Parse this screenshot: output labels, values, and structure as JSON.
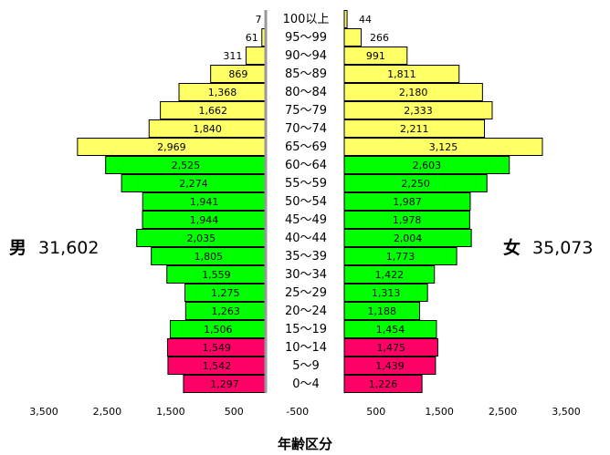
{
  "chart_data": {
    "type": "bar",
    "subtype": "population-pyramid",
    "categories": [
      "0～4",
      "5～9",
      "10～14",
      "15～19",
      "20～24",
      "25～29",
      "30～34",
      "35～39",
      "40～44",
      "45～49",
      "50～54",
      "55～59",
      "60～64",
      "65～69",
      "70～74",
      "75～79",
      "80～84",
      "85～89",
      "90～94",
      "95～99",
      "100以上"
    ],
    "series": [
      {
        "name": "男",
        "values": [
          1297,
          1542,
          1549,
          1506,
          1263,
          1275,
          1559,
          1805,
          2035,
          1944,
          1941,
          2274,
          2525,
          2969,
          1840,
          1662,
          1368,
          869,
          311,
          61,
          7
        ]
      },
      {
        "name": "女",
        "values": [
          1226,
          1439,
          1475,
          1454,
          1188,
          1313,
          1422,
          1773,
          2004,
          1978,
          1987,
          2250,
          2603,
          3125,
          2211,
          2333,
          2180,
          1811,
          991,
          266,
          44
        ]
      }
    ],
    "value_labels": {
      "male": [
        "1,297",
        "1,542",
        "1,549",
        "1,506",
        "1,263",
        "1,275",
        "1,559",
        "1,805",
        "2,035",
        "1,944",
        "1,941",
        "2,274",
        "2,525",
        "2,969",
        "1,840",
        "1,662",
        "1,368",
        "869",
        "311",
        "61",
        "7"
      ],
      "female": [
        "1,226",
        "1,439",
        "1,475",
        "1,454",
        "1,188",
        "1,313",
        "1,422",
        "1,773",
        "2,004",
        "1,978",
        "1,987",
        "2,250",
        "2,603",
        "3,125",
        "2,211",
        "2,333",
        "2,180",
        "1,811",
        "991",
        "266",
        "44"
      ]
    },
    "x_ticks_left": [
      "3,500",
      "2,500",
      "1,500",
      "500",
      "-500"
    ],
    "x_ticks_right": [
      "500",
      "1,500",
      "2,500",
      "3,500"
    ],
    "xlim": [
      0,
      3500
    ],
    "xlabel": "年齢区分",
    "totals": {
      "male_label": "男",
      "male_total": "31,602",
      "female_label": "女",
      "female_total": "35,073"
    },
    "color_groups": [
      {
        "ages": "0～14",
        "color": "#ff0066"
      },
      {
        "ages": "15～64",
        "color": "#00ff00"
      },
      {
        "ages": "65+",
        "color": "#ffff66"
      }
    ],
    "colors": {
      "young": "#ff0066",
      "working": "#00ff00",
      "elderly": "#ffff66",
      "border": "#000000",
      "center_divider": "#999999"
    }
  }
}
